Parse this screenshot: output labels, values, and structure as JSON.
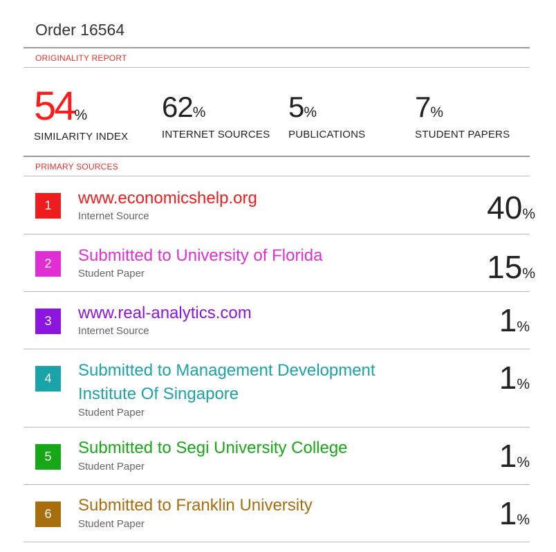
{
  "header": {
    "title": "Order 16564"
  },
  "originality": {
    "label": "ORIGINALITY REPORT",
    "stats": [
      {
        "value": "54",
        "unit": "%",
        "label": "SIMILARITY INDEX",
        "color": "#ff1a1a"
      },
      {
        "value": "62",
        "unit": "%",
        "label": "INTERNET SOURCES",
        "color": "#222222"
      },
      {
        "value": "5",
        "unit": "%",
        "label": "PUBLICATIONS",
        "color": "#222222"
      },
      {
        "value": "7",
        "unit": "%",
        "label": "STUDENT PAPERS",
        "color": "#222222"
      }
    ]
  },
  "primary_sources": {
    "label": "PRIMARY SOURCES",
    "items": [
      {
        "rank": "1",
        "name": "www.economicshelp.org",
        "type": "Internet Source",
        "percent": "40",
        "unit": "%",
        "color": "#ee1c1c"
      },
      {
        "rank": "2",
        "name": "Submitted to University of Florida",
        "type": "Student Paper",
        "percent": "15",
        "unit": "%",
        "color": "#e02ed4"
      },
      {
        "rank": "3",
        "name": "www.real-analytics.com",
        "type": "Internet Source",
        "percent": "1",
        "unit": "%",
        "color": "#8a16e0"
      },
      {
        "rank": "4",
        "name": "Submitted to Management Development Institute Of Singapore",
        "type": "Student Paper",
        "percent": "1",
        "unit": "%",
        "color": "#1aa3a8"
      },
      {
        "rank": "5",
        "name": "Submitted to Segi University College",
        "type": "Student Paper",
        "percent": "1",
        "unit": "%",
        "color": "#16a816"
      },
      {
        "rank": "6",
        "name": "Submitted to Franklin University",
        "type": "Student Paper",
        "percent": "1",
        "unit": "%",
        "color": "#a86d0c"
      }
    ]
  }
}
